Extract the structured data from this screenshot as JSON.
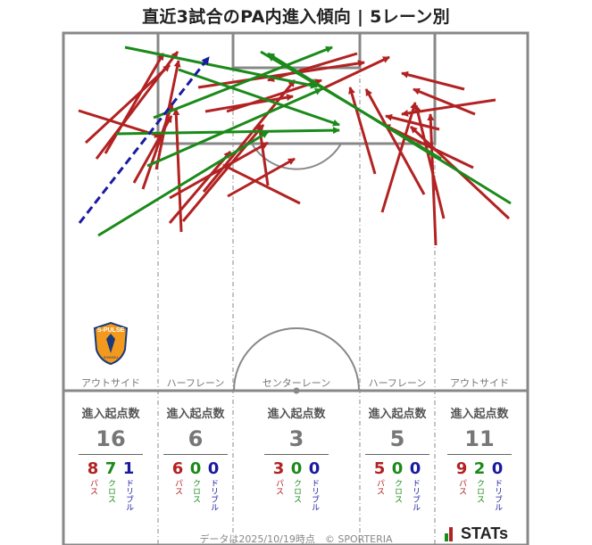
{
  "title": "直近3試合のPA内進入傾向 | 5レーン別",
  "lanes": [
    {
      "label": "アウトサイド",
      "header": "進入起点数",
      "total": "16",
      "pass": "8",
      "cross": "7",
      "dribble": "1"
    },
    {
      "label": "ハーフレーン",
      "header": "進入起点数",
      "total": "6",
      "pass": "6",
      "cross": "0",
      "dribble": "0"
    },
    {
      "label": "センターレーン",
      "header": "進入起点数",
      "total": "3",
      "pass": "3",
      "cross": "0",
      "dribble": "0"
    },
    {
      "label": "ハーフレーン",
      "header": "進入起点数",
      "total": "5",
      "pass": "5",
      "cross": "0",
      "dribble": "0"
    },
    {
      "label": "アウトサイド",
      "header": "進入起点数",
      "total": "11",
      "pass": "9",
      "cross": "2",
      "dribble": "0"
    }
  ],
  "legend": {
    "pass": "パス",
    "cross": "クロス",
    "dribble": "ドリブル"
  },
  "colors": {
    "pass": "#b22222",
    "cross": "#1a8a1a",
    "dribble": "#1a1aa0",
    "lines": "#888888"
  },
  "crest": {
    "icon": "shield-crest-icon",
    "text": "S-PULSE",
    "subtext": "SHIMIZU"
  },
  "footer": "データは2025/10/19時点　© SPORTERIA",
  "logo": "STATs"
}
